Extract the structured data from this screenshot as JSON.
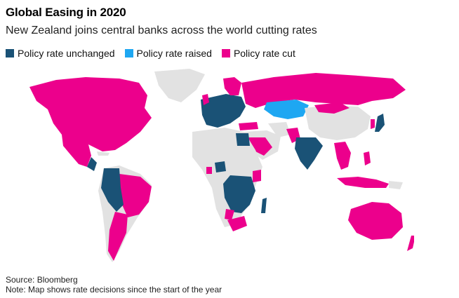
{
  "header": {
    "title": "Global Easing in 2020",
    "subtitle": "New Zealand joins central banks across the world cutting rates"
  },
  "legend": {
    "items": [
      {
        "label": "Policy rate unchanged",
        "color": "#1a5276"
      },
      {
        "label": "Policy rate raised",
        "color": "#1ea7f2"
      },
      {
        "label": "Policy rate cut",
        "color": "#ec008c"
      }
    ]
  },
  "colors": {
    "unchanged": "#1a5276",
    "raised": "#1ea7f2",
    "cut": "#ec008c",
    "no_data": "#e2e2e2"
  },
  "footer": {
    "source": "Source: Bloomberg",
    "note": "Note: Map shows rate decisions since the start of the year"
  }
}
